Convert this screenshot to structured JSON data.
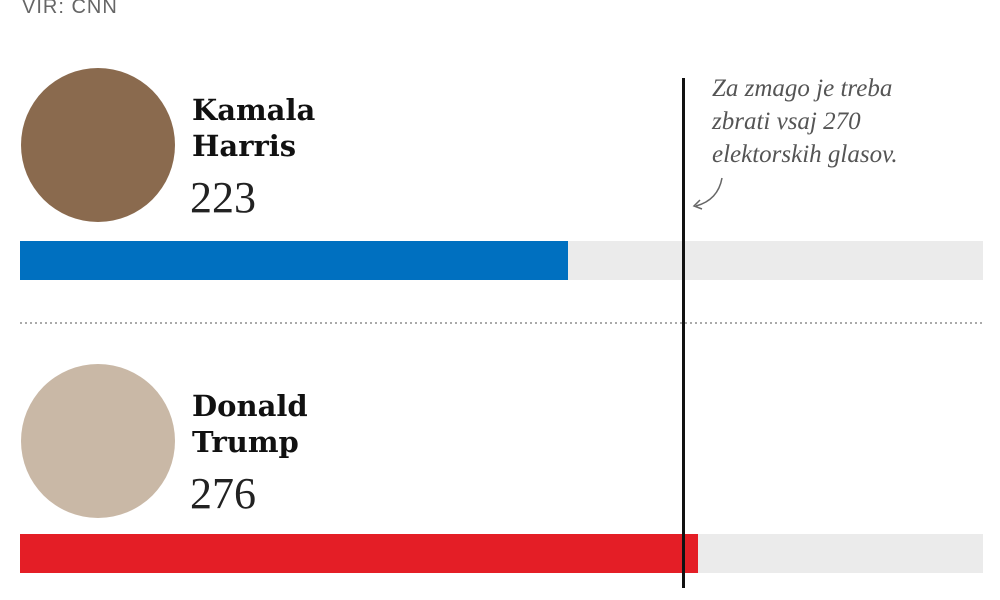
{
  "chart_data": {
    "type": "bar",
    "source": "VIR: CNN",
    "categories": [
      "Kamala Harris",
      "Donald Trump"
    ],
    "values": [
      223,
      276
    ],
    "colors": [
      "#0070c0",
      "#e41e26"
    ],
    "track_color": "#ebebeb",
    "xlim": [
      0,
      392
    ],
    "threshold": 270,
    "annotation": "Za zmago je treba zbrati vsaj 270 elektorskih glasov."
  }
}
